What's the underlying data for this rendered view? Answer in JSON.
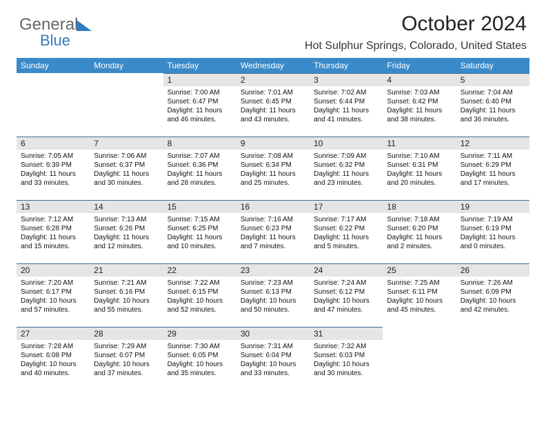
{
  "brand": {
    "part1": "General",
    "part2": "Blue"
  },
  "title": "October 2024",
  "location": "Hot Sulphur Springs, Colorado, United States",
  "day_headers": [
    "Sunday",
    "Monday",
    "Tuesday",
    "Wednesday",
    "Thursday",
    "Friday",
    "Saturday"
  ],
  "colors": {
    "header_bg": "#3a8ac9",
    "header_fg": "#ffffff",
    "daynum_bg": "#e5e5e5",
    "daynum_border": "#3a6a9a",
    "brand_blue": "#2e7cc0"
  },
  "weeks": [
    [
      null,
      null,
      {
        "n": "1",
        "sr": "Sunrise: 7:00 AM",
        "ss": "Sunset: 6:47 PM",
        "d1": "Daylight: 11 hours",
        "d2": "and 46 minutes."
      },
      {
        "n": "2",
        "sr": "Sunrise: 7:01 AM",
        "ss": "Sunset: 6:45 PM",
        "d1": "Daylight: 11 hours",
        "d2": "and 43 minutes."
      },
      {
        "n": "3",
        "sr": "Sunrise: 7:02 AM",
        "ss": "Sunset: 6:44 PM",
        "d1": "Daylight: 11 hours",
        "d2": "and 41 minutes."
      },
      {
        "n": "4",
        "sr": "Sunrise: 7:03 AM",
        "ss": "Sunset: 6:42 PM",
        "d1": "Daylight: 11 hours",
        "d2": "and 38 minutes."
      },
      {
        "n": "5",
        "sr": "Sunrise: 7:04 AM",
        "ss": "Sunset: 6:40 PM",
        "d1": "Daylight: 11 hours",
        "d2": "and 36 minutes."
      }
    ],
    [
      {
        "n": "6",
        "sr": "Sunrise: 7:05 AM",
        "ss": "Sunset: 6:39 PM",
        "d1": "Daylight: 11 hours",
        "d2": "and 33 minutes."
      },
      {
        "n": "7",
        "sr": "Sunrise: 7:06 AM",
        "ss": "Sunset: 6:37 PM",
        "d1": "Daylight: 11 hours",
        "d2": "and 30 minutes."
      },
      {
        "n": "8",
        "sr": "Sunrise: 7:07 AM",
        "ss": "Sunset: 6:36 PM",
        "d1": "Daylight: 11 hours",
        "d2": "and 28 minutes."
      },
      {
        "n": "9",
        "sr": "Sunrise: 7:08 AM",
        "ss": "Sunset: 6:34 PM",
        "d1": "Daylight: 11 hours",
        "d2": "and 25 minutes."
      },
      {
        "n": "10",
        "sr": "Sunrise: 7:09 AM",
        "ss": "Sunset: 6:32 PM",
        "d1": "Daylight: 11 hours",
        "d2": "and 23 minutes."
      },
      {
        "n": "11",
        "sr": "Sunrise: 7:10 AM",
        "ss": "Sunset: 6:31 PM",
        "d1": "Daylight: 11 hours",
        "d2": "and 20 minutes."
      },
      {
        "n": "12",
        "sr": "Sunrise: 7:11 AM",
        "ss": "Sunset: 6:29 PM",
        "d1": "Daylight: 11 hours",
        "d2": "and 17 minutes."
      }
    ],
    [
      {
        "n": "13",
        "sr": "Sunrise: 7:12 AM",
        "ss": "Sunset: 6:28 PM",
        "d1": "Daylight: 11 hours",
        "d2": "and 15 minutes."
      },
      {
        "n": "14",
        "sr": "Sunrise: 7:13 AM",
        "ss": "Sunset: 6:26 PM",
        "d1": "Daylight: 11 hours",
        "d2": "and 12 minutes."
      },
      {
        "n": "15",
        "sr": "Sunrise: 7:15 AM",
        "ss": "Sunset: 6:25 PM",
        "d1": "Daylight: 11 hours",
        "d2": "and 10 minutes."
      },
      {
        "n": "16",
        "sr": "Sunrise: 7:16 AM",
        "ss": "Sunset: 6:23 PM",
        "d1": "Daylight: 11 hours",
        "d2": "and 7 minutes."
      },
      {
        "n": "17",
        "sr": "Sunrise: 7:17 AM",
        "ss": "Sunset: 6:22 PM",
        "d1": "Daylight: 11 hours",
        "d2": "and 5 minutes."
      },
      {
        "n": "18",
        "sr": "Sunrise: 7:18 AM",
        "ss": "Sunset: 6:20 PM",
        "d1": "Daylight: 11 hours",
        "d2": "and 2 minutes."
      },
      {
        "n": "19",
        "sr": "Sunrise: 7:19 AM",
        "ss": "Sunset: 6:19 PM",
        "d1": "Daylight: 11 hours",
        "d2": "and 0 minutes."
      }
    ],
    [
      {
        "n": "20",
        "sr": "Sunrise: 7:20 AM",
        "ss": "Sunset: 6:17 PM",
        "d1": "Daylight: 10 hours",
        "d2": "and 57 minutes."
      },
      {
        "n": "21",
        "sr": "Sunrise: 7:21 AM",
        "ss": "Sunset: 6:16 PM",
        "d1": "Daylight: 10 hours",
        "d2": "and 55 minutes."
      },
      {
        "n": "22",
        "sr": "Sunrise: 7:22 AM",
        "ss": "Sunset: 6:15 PM",
        "d1": "Daylight: 10 hours",
        "d2": "and 52 minutes."
      },
      {
        "n": "23",
        "sr": "Sunrise: 7:23 AM",
        "ss": "Sunset: 6:13 PM",
        "d1": "Daylight: 10 hours",
        "d2": "and 50 minutes."
      },
      {
        "n": "24",
        "sr": "Sunrise: 7:24 AM",
        "ss": "Sunset: 6:12 PM",
        "d1": "Daylight: 10 hours",
        "d2": "and 47 minutes."
      },
      {
        "n": "25",
        "sr": "Sunrise: 7:25 AM",
        "ss": "Sunset: 6:11 PM",
        "d1": "Daylight: 10 hours",
        "d2": "and 45 minutes."
      },
      {
        "n": "26",
        "sr": "Sunrise: 7:26 AM",
        "ss": "Sunset: 6:09 PM",
        "d1": "Daylight: 10 hours",
        "d2": "and 42 minutes."
      }
    ],
    [
      {
        "n": "27",
        "sr": "Sunrise: 7:28 AM",
        "ss": "Sunset: 6:08 PM",
        "d1": "Daylight: 10 hours",
        "d2": "and 40 minutes."
      },
      {
        "n": "28",
        "sr": "Sunrise: 7:29 AM",
        "ss": "Sunset: 6:07 PM",
        "d1": "Daylight: 10 hours",
        "d2": "and 37 minutes."
      },
      {
        "n": "29",
        "sr": "Sunrise: 7:30 AM",
        "ss": "Sunset: 6:05 PM",
        "d1": "Daylight: 10 hours",
        "d2": "and 35 minutes."
      },
      {
        "n": "30",
        "sr": "Sunrise: 7:31 AM",
        "ss": "Sunset: 6:04 PM",
        "d1": "Daylight: 10 hours",
        "d2": "and 33 minutes."
      },
      {
        "n": "31",
        "sr": "Sunrise: 7:32 AM",
        "ss": "Sunset: 6:03 PM",
        "d1": "Daylight: 10 hours",
        "d2": "and 30 minutes."
      },
      null,
      null
    ]
  ]
}
